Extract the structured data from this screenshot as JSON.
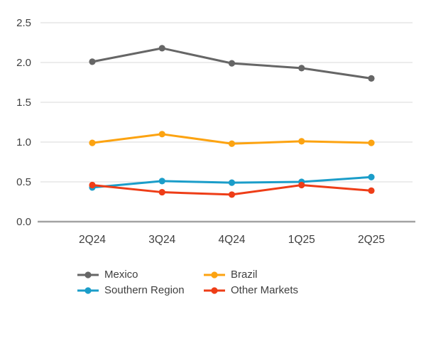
{
  "chart_data": {
    "type": "line",
    "categories": [
      "2Q24",
      "3Q24",
      "4Q24",
      "1Q25",
      "2Q25"
    ],
    "series": [
      {
        "name": "Mexico",
        "color": "#666666",
        "values": [
          2.01,
          2.18,
          1.99,
          1.93,
          1.8
        ]
      },
      {
        "name": "Brazil",
        "color": "#FCA311",
        "values": [
          0.99,
          1.1,
          0.98,
          1.01,
          0.99
        ]
      },
      {
        "name": "Southern Region",
        "color": "#1B9DC9",
        "values": [
          0.43,
          0.51,
          0.49,
          0.5,
          0.56
        ]
      },
      {
        "name": "Other Markets",
        "color": "#EE3D17",
        "values": [
          0.46,
          0.37,
          0.34,
          0.46,
          0.39
        ]
      }
    ],
    "title": "",
    "xlabel": "",
    "ylabel": "",
    "ylim": [
      0,
      2.5
    ],
    "ytick_step": 0.5,
    "ytick_labels": [
      "0.0",
      "0.5",
      "1.0",
      "1.5",
      "2.0",
      "2.5"
    ],
    "grid": true,
    "legend_position": "bottom",
    "legend_order": [
      "Mexico",
      "Brazil",
      "Southern Region",
      "Other Markets"
    ]
  },
  "colors": {
    "gridline": "#d9d9d9",
    "axis_line": "#a3a3a3",
    "tick_label": "#3f3f3f",
    "legend_text": "#3f3f3f",
    "background": "#ffffff"
  }
}
